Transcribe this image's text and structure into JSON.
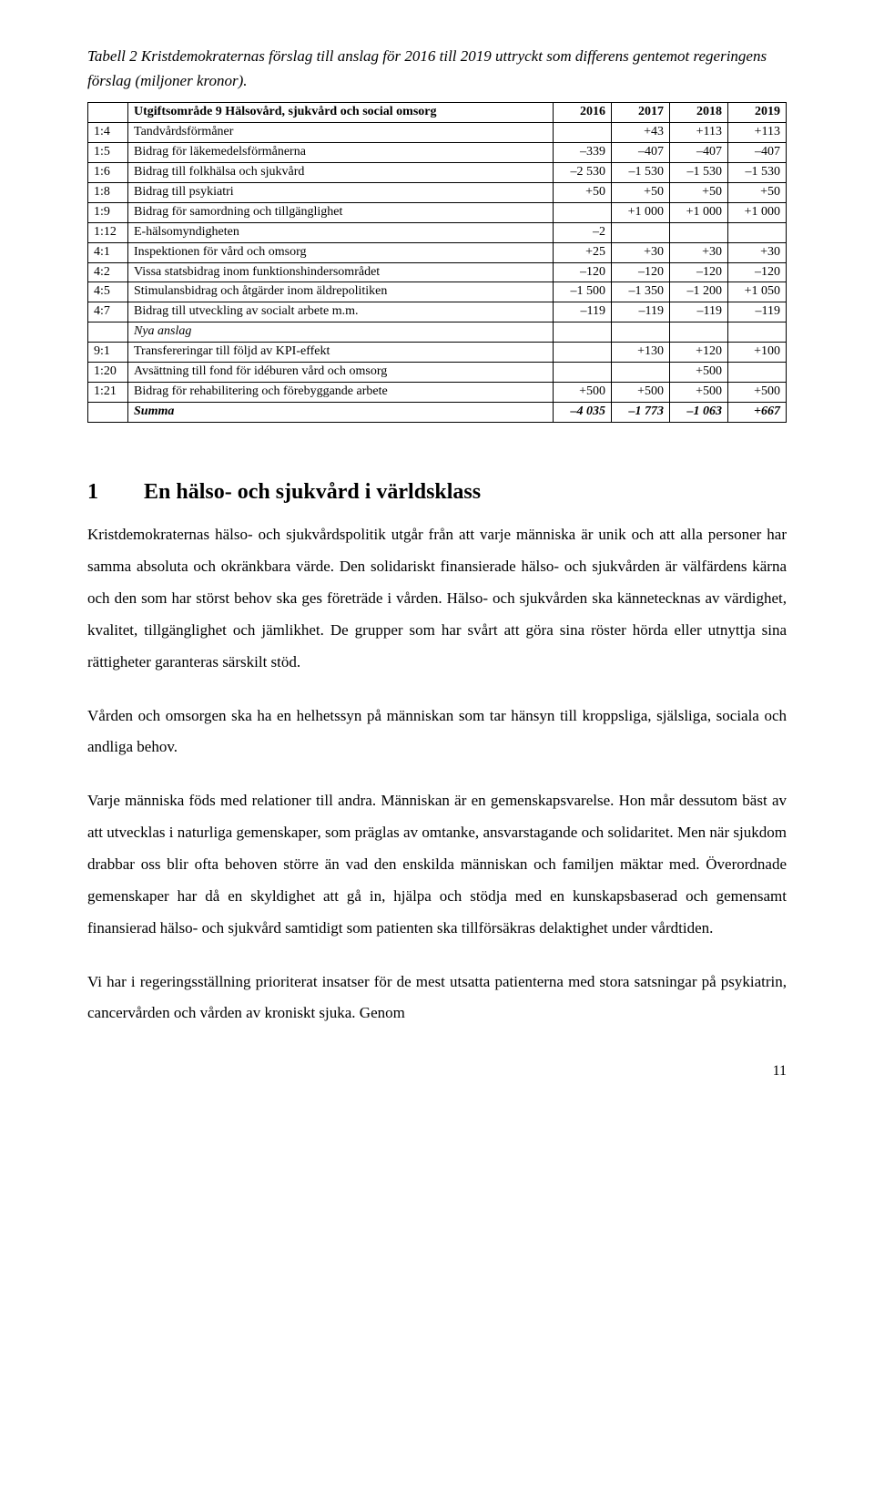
{
  "caption": "Tabell 2 Kristdemokraternas förslag till anslag för 2016 till 2019 uttryckt som differens gentemot regeringens förslag (miljoner kronor).",
  "table": {
    "header": {
      "title": "Utgiftsområde 9 Hälsovård, sjukvård och social omsorg",
      "y2016": "2016",
      "y2017": "2017",
      "y2018": "2018",
      "y2019": "2019"
    },
    "rows": [
      {
        "code": "1:4",
        "desc": "Tandvårdsförmåner",
        "v": [
          "",
          "+43",
          "+113",
          "+113"
        ]
      },
      {
        "code": "1:5",
        "desc": "Bidrag för läkemedelsförmånerna",
        "v": [
          "–339",
          "–407",
          "–407",
          "–407"
        ]
      },
      {
        "code": "1:6",
        "desc": "Bidrag till folkhälsa och sjukvård",
        "v": [
          "–2 530",
          "–1 530",
          "–1 530",
          "–1 530"
        ]
      },
      {
        "code": "1:8",
        "desc": "Bidrag till psykiatri",
        "v": [
          "+50",
          "+50",
          "+50",
          "+50"
        ]
      },
      {
        "code": "1:9",
        "desc": "Bidrag för samordning och tillgänglighet",
        "v": [
          "",
          "+1 000",
          "+1 000",
          "+1 000"
        ]
      },
      {
        "code": "1:12",
        "desc": "E-hälsomyndigheten",
        "v": [
          "–2",
          "",
          "",
          ""
        ]
      },
      {
        "code": "4:1",
        "desc": "Inspektionen för vård och omsorg",
        "v": [
          "+25",
          "+30",
          "+30",
          "+30"
        ]
      },
      {
        "code": "4:2",
        "desc": "Vissa statsbidrag inom funktionshindersområdet",
        "v": [
          "–120",
          "–120",
          "–120",
          "–120"
        ]
      },
      {
        "code": "4:5",
        "desc": "Stimulansbidrag och åtgärder inom äldrepolitiken",
        "v": [
          "–1 500",
          "–1 350",
          "–1 200",
          "+1 050"
        ]
      },
      {
        "code": "4:7",
        "desc": "Bidrag till utveckling av socialt arbete m.m.",
        "v": [
          "–119",
          "–119",
          "–119",
          "–119"
        ]
      }
    ],
    "nya_anslag_label": "Nya anslag",
    "nya_rows": [
      {
        "code": "9:1",
        "desc": "Transfereringar till följd av KPI-effekt",
        "v": [
          "",
          "+130",
          "+120",
          "+100"
        ]
      },
      {
        "code": "1:20",
        "desc": "Avsättning till fond för idéburen vård och omsorg",
        "v": [
          "",
          "",
          "+500",
          ""
        ]
      },
      {
        "code": "1:21",
        "desc": "Bidrag för rehabilitering och förebyggande arbete",
        "v": [
          "+500",
          "+500",
          "+500",
          "+500"
        ]
      }
    ],
    "summa": {
      "label": "Summa",
      "v": [
        "–4 035",
        "–1 773",
        "–1 063",
        "+667"
      ]
    }
  },
  "section": {
    "number": "1",
    "title": "En hälso- och sjukvård i världsklass"
  },
  "paragraphs": {
    "p1": "Kristdemokraternas hälso- och sjukvårdspolitik utgår från att varje människa är unik och att alla personer har samma absoluta och okränkbara värde. Den solidariskt finansierade hälso- och sjukvården är välfärdens kärna och den som har störst behov ska ges företräde i vården. Hälso- och sjukvården ska kännetecknas av värdighet, kvalitet, tillgänglighet och jämlikhet. De grupper som har svårt att göra sina röster hörda eller utnyttja sina rättigheter garanteras särskilt stöd.",
    "p2": "Vården och omsorgen ska ha en helhetssyn på människan som tar hänsyn till kroppsliga, själsliga, sociala och andliga behov.",
    "p3": "Varje människa föds med relationer till andra. Människan är en gemenskapsvarelse. Hon mår dessutom bäst av att utvecklas i naturliga gemenskaper, som präglas av omtanke, ansvarstagande och solidaritet. Men när sjukdom drabbar oss blir ofta behoven större än vad den enskilda människan och familjen mäktar med. Överordnade gemenskaper har då en skyldighet att gå in, hjälpa och stödja med en kunskapsbaserad och gemensamt finansierad hälso- och sjukvård samtidigt som patienten ska tillförsäkras delaktighet under vårdtiden.",
    "p4": "Vi har i regeringsställning prioriterat insatser för de mest utsatta patienterna med stora satsningar på psykiatrin, cancervården och vården av kroniskt sjuka. Genom"
  },
  "page_number": "11"
}
